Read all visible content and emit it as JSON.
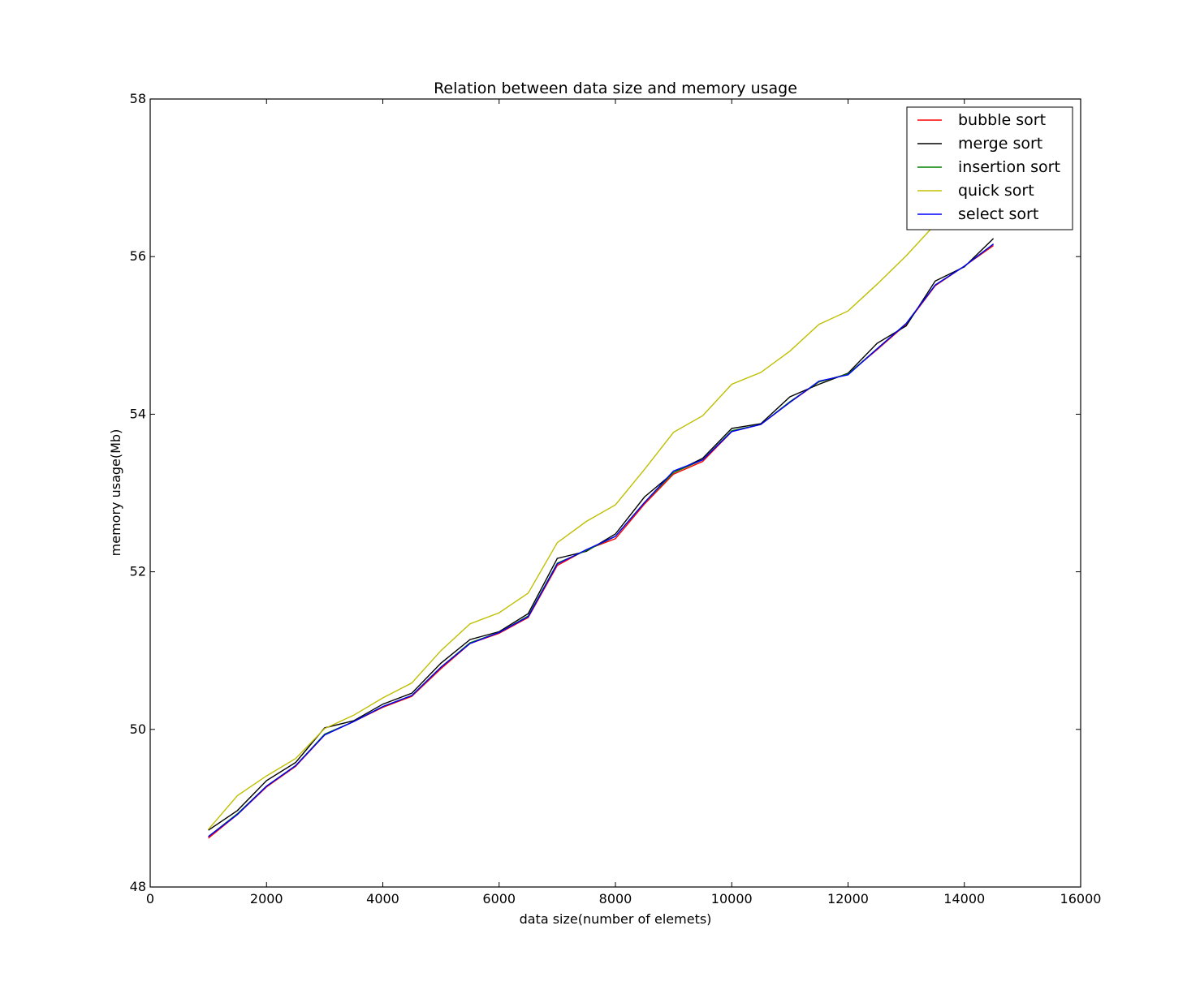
{
  "chart_data": {
    "type": "line",
    "title": "Relation between data size and memory usage",
    "xlabel": "data size(number of elemets)",
    "ylabel": "memory usage(Mb)",
    "xlim": [
      0,
      16000
    ],
    "ylim": [
      48,
      58
    ],
    "xticks": [
      0,
      2000,
      4000,
      6000,
      8000,
      10000,
      12000,
      14000,
      16000
    ],
    "yticks": [
      48,
      50,
      52,
      54,
      56,
      58
    ],
    "grid": false,
    "legend_position": "top-right",
    "x": [
      1000,
      1500,
      2000,
      2500,
      3000,
      3500,
      4000,
      4500,
      5000,
      5500,
      6000,
      6500,
      7000,
      7500,
      8000,
      8500,
      9000,
      9500,
      10000,
      10500,
      11000,
      11500,
      12000,
      12500,
      13000,
      13500,
      14000,
      14500
    ],
    "series": [
      {
        "name": "bubble sort",
        "color": "#ff0000",
        "values": [
          48.62,
          48.92,
          49.27,
          49.53,
          49.93,
          50.1,
          50.28,
          50.42,
          50.77,
          51.09,
          51.22,
          51.42,
          52.08,
          52.28,
          52.42,
          52.86,
          53.24,
          53.4,
          53.78,
          53.87,
          54.15,
          54.41,
          54.51,
          54.82,
          55.14,
          55.63,
          55.88,
          56.14
        ]
      },
      {
        "name": "merge sort",
        "color": "#000000",
        "values": [
          48.72,
          48.97,
          49.35,
          49.58,
          50.02,
          50.11,
          50.32,
          50.46,
          50.84,
          51.14,
          51.24,
          51.47,
          52.17,
          52.26,
          52.48,
          52.95,
          53.26,
          53.44,
          53.82,
          53.88,
          54.22,
          54.38,
          54.52,
          54.9,
          55.12,
          55.69,
          55.87,
          56.23
        ]
      },
      {
        "name": "insertion sort",
        "color": "#008000",
        "values": [
          48.64,
          48.93,
          49.28,
          49.54,
          49.94,
          50.1,
          50.29,
          50.43,
          50.79,
          51.1,
          51.23,
          51.44,
          52.11,
          52.27,
          52.45,
          52.88,
          53.26,
          53.42,
          53.79,
          53.87,
          54.16,
          54.41,
          54.51,
          54.83,
          55.15,
          55.64,
          55.88,
          56.16
        ]
      },
      {
        "name": "quick sort",
        "color": "#bfbf00",
        "values": [
          48.73,
          49.16,
          49.41,
          49.63,
          50.01,
          50.18,
          50.4,
          50.59,
          51.0,
          51.34,
          51.48,
          51.73,
          52.37,
          52.64,
          52.85,
          53.3,
          53.77,
          53.98,
          54.38,
          54.53,
          54.8,
          55.14,
          55.31,
          55.65,
          56.01,
          56.41,
          56.49,
          56.56
        ]
      },
      {
        "name": "select sort",
        "color": "#0000ff",
        "values": [
          48.64,
          48.92,
          49.28,
          49.54,
          49.93,
          50.1,
          50.29,
          50.43,
          50.79,
          51.09,
          51.23,
          51.43,
          52.1,
          52.28,
          52.45,
          52.88,
          53.28,
          53.42,
          53.78,
          53.87,
          54.15,
          54.42,
          54.5,
          54.83,
          55.15,
          55.64,
          55.88,
          56.16
        ]
      }
    ]
  }
}
